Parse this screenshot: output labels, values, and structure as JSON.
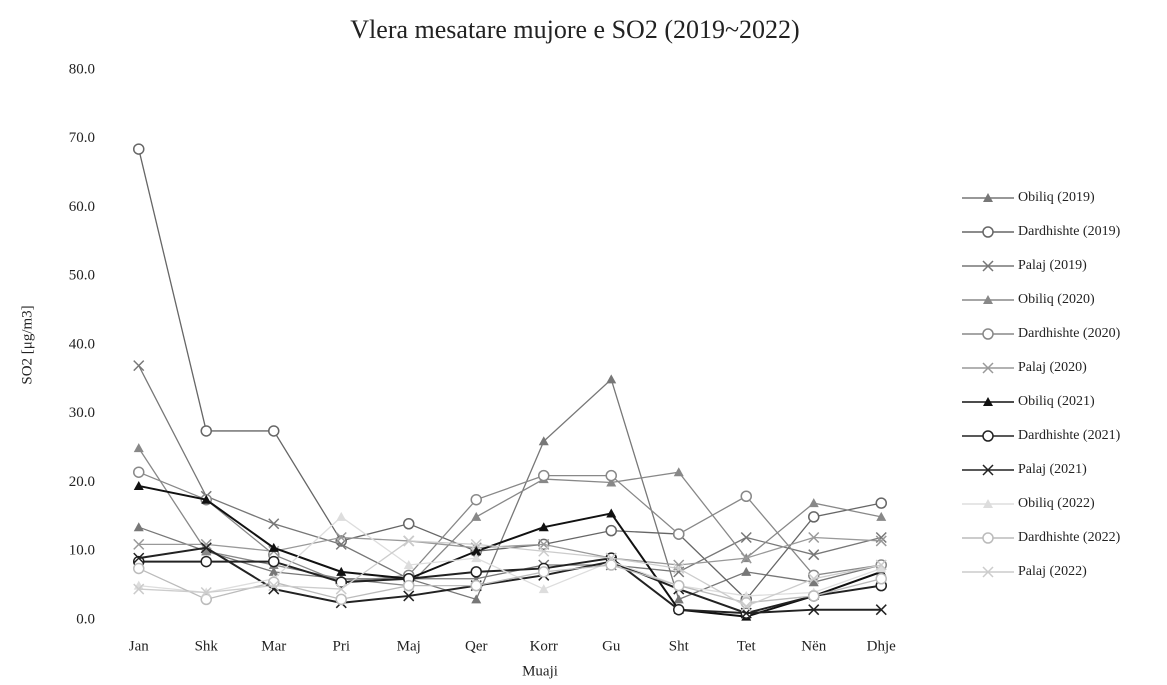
{
  "chart_data": {
    "type": "line",
    "title": "Vlera mesatare mujore e SO2 (2019~2022)",
    "xlabel": "Muaji",
    "ylabel": "SO2 [μg/m3]",
    "categories": [
      "Jan",
      "Shk",
      "Mar",
      "Pri",
      "Maj",
      "Qer",
      "Korr",
      "Gu",
      "Sht",
      "Tet",
      "Nën",
      "Dhje"
    ],
    "ylim": [
      0,
      80
    ],
    "yticks": [
      {
        "value": 0,
        "label": "0.0"
      },
      {
        "value": 10,
        "label": "10.0"
      },
      {
        "value": 20,
        "label": "20.0"
      },
      {
        "value": 30,
        "label": "30.0"
      },
      {
        "value": 40,
        "label": "40.0"
      },
      {
        "value": 50,
        "label": "50.0"
      },
      {
        "value": 60,
        "label": "60.0"
      },
      {
        "value": 70,
        "label": "70.0"
      },
      {
        "value": 80,
        "label": "80.0"
      }
    ],
    "legend": "right",
    "series": [
      {
        "name": "Obiliq (2019)",
        "color": "#777777",
        "marker": "triangle",
        "values": [
          13.5,
          10,
          7,
          6,
          6,
          3,
          26,
          35,
          3,
          7,
          5.5,
          8
        ]
      },
      {
        "name": "Dardhishte (2019)",
        "color": "#666666",
        "marker": "circle",
        "values": [
          68.5,
          27.5,
          27.5,
          11.5,
          14,
          10,
          11,
          13,
          12.5,
          3,
          15,
          17
        ]
      },
      {
        "name": "Palaj (2019)",
        "color": "#777777",
        "marker": "x",
        "values": [
          37,
          18,
          14,
          11,
          6,
          6,
          8,
          8,
          7,
          12,
          9.5,
          12
        ]
      },
      {
        "name": "Obiliq (2020)",
        "color": "#888888",
        "marker": "triangle",
        "values": [
          25,
          10,
          8,
          6,
          5,
          15,
          20.5,
          20,
          21.5,
          9,
          17,
          15
        ]
      },
      {
        "name": "Dardhishte (2020)",
        "color": "#888888",
        "marker": "circle",
        "values": [
          21.5,
          17.5,
          9.5,
          5.5,
          6.5,
          17.5,
          21,
          21,
          12.5,
          18,
          6.5,
          8
        ]
      },
      {
        "name": "Palaj (2020)",
        "color": "#999999",
        "marker": "x",
        "values": [
          11,
          11,
          10,
          12,
          11.5,
          10.5,
          11,
          9,
          8,
          9,
          12,
          11.5
        ]
      },
      {
        "name": "Obiliq (2021)",
        "color": "#111111",
        "marker": "triangle",
        "values": [
          19.5,
          17.5,
          10.5,
          7,
          6,
          10,
          13.5,
          15.5,
          1.5,
          0.5,
          3.5,
          7
        ]
      },
      {
        "name": "Dardhishte (2021)",
        "color": "#222222",
        "marker": "circle",
        "values": [
          8.5,
          8.5,
          8.5,
          5.5,
          6,
          7,
          7.5,
          9,
          1.5,
          1,
          3.5,
          5
        ]
      },
      {
        "name": "Palaj (2021)",
        "color": "#222222",
        "marker": "x",
        "values": [
          9,
          10.5,
          4.5,
          2.5,
          3.5,
          5,
          6.5,
          8.5,
          4.5,
          1,
          1.5,
          1.5
        ]
      },
      {
        "name": "Obiliq (2022)",
        "color": "#dddddd",
        "marker": "triangle",
        "values": [
          5,
          4,
          6,
          15,
          8,
          9,
          4.5,
          8.5,
          5,
          3.5,
          4,
          7.5
        ]
      },
      {
        "name": "Dardhishte (2022)",
        "color": "#bbbbbb",
        "marker": "circle",
        "values": [
          7.5,
          3,
          5.5,
          3,
          5,
          5,
          7,
          8,
          5,
          2.5,
          3.5,
          6
        ]
      },
      {
        "name": "Palaj (2022)",
        "color": "#cccccc",
        "marker": "x",
        "values": [
          4.5,
          4,
          5,
          4.5,
          11.5,
          11,
          10,
          9,
          7.5,
          2,
          6,
          8
        ]
      }
    ]
  }
}
